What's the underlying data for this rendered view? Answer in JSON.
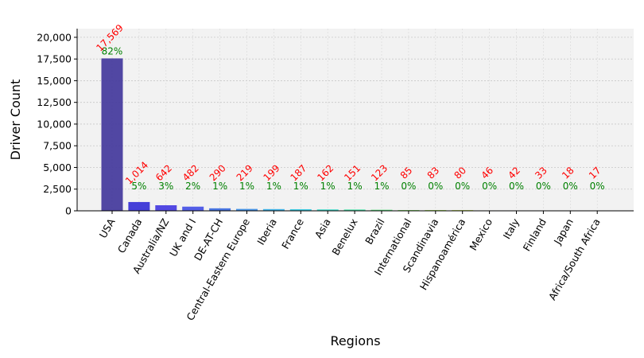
{
  "chart_data": {
    "type": "bar",
    "xlabel": "Regions",
    "ylabel": "Driver Count",
    "ylim": [
      0,
      21000
    ],
    "yticks": [
      0,
      2500,
      5000,
      7500,
      10000,
      12500,
      15000,
      17500,
      20000
    ],
    "ytick_labels": [
      "0",
      "2,500",
      "5,000",
      "7,500",
      "10,000",
      "12,500",
      "15,000",
      "17,500",
      "20,000"
    ],
    "grid": true,
    "categories": [
      "USA",
      "Canada",
      "Australia/NZ",
      "UK and I",
      "DE-AT-CH",
      "Central-Eastern Europe",
      "Iberia",
      "France",
      "Asia",
      "Benelux",
      "Brazil",
      "International",
      "Scandinavia",
      "Hispanoamérica",
      "Mexico",
      "Italy",
      "Finland",
      "Japan",
      "Africa/South Africa"
    ],
    "values": [
      17569,
      1014,
      642,
      482,
      290,
      219,
      199,
      187,
      162,
      151,
      123,
      85,
      83,
      80,
      46,
      42,
      33,
      18,
      17
    ],
    "value_labels": [
      "17,569",
      "1,014",
      "642",
      "482",
      "290",
      "219",
      "199",
      "187",
      "162",
      "151",
      "123",
      "85",
      "83",
      "80",
      "46",
      "42",
      "33",
      "18",
      "17"
    ],
    "percent_labels": [
      "82%",
      "5%",
      "3%",
      "2%",
      "1%",
      "1%",
      "1%",
      "1%",
      "1%",
      "1%",
      "1%",
      "0%",
      "0%",
      "0%",
      "0%",
      "0%",
      "0%",
      "0%",
      "0%"
    ],
    "bar_colors": [
      "#483d9e",
      "#3b35d6",
      "#4a3fe0",
      "#4a55e6",
      "#3f6fe0",
      "#3e8fe6",
      "#36b0e8",
      "#34c8e0",
      "#38d8c8",
      "#40e0a8",
      "#56e080",
      "#7ae05a",
      "#9be040",
      "#c0e03a",
      "#e0c83a",
      "#e0a030",
      "#e07830",
      "#e05030",
      "#c83030"
    ],
    "count_label_color": "#ff0000",
    "percent_label_color": "#008000",
    "plot_background": "#f2f2f2"
  }
}
